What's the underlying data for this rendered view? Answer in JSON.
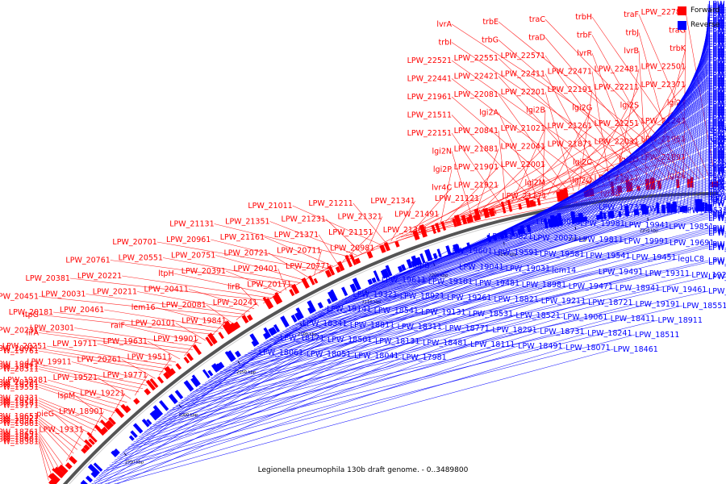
{
  "colors": {
    "forward": "#ff0000",
    "reverse": "#0000ff",
    "backbone": "#555555",
    "ticks": "#000000"
  },
  "legend": {
    "forward": "Forward",
    "reverse": "Reverse"
  },
  "caption": "Legionella pneumophila 130b draft genome. - 0..3489800",
  "scale_marks": [
    {
      "kbp": 1950,
      "label": "1950 kbp"
    },
    {
      "kbp": 2000,
      "label": "2000 kbp"
    },
    {
      "kbp": 2050,
      "label": "2050 kbp"
    },
    {
      "kbp": 2100,
      "label": "2100 kbp"
    },
    {
      "kbp": 2150,
      "label": "2150 kbp"
    },
    {
      "kbp": 2200,
      "label": "2200 kbp"
    },
    {
      "kbp": 2250,
      "label": "2250 kbp"
    },
    {
      "kbp": 2300,
      "label": "2300 kbp"
    },
    {
      "kbp": 2350,
      "label": "2350 kbp"
    }
  ],
  "red_labels": [
    "LPW_22781",
    "traF",
    "trbH",
    "traC",
    "trbE",
    "lvrA",
    "traG",
    "trbJ",
    "trbF",
    "traD",
    "trbG",
    "trbI",
    "trbK",
    "lvrB",
    "lvrR",
    "LPW_22571",
    "LPW_22551",
    "LPW_22521",
    "LPW_22501",
    "LPW_22481",
    "LPW_22471",
    "LPW_22411",
    "LPW_22421",
    "LPW_22441",
    "LPW_22371",
    "LPW_22211",
    "LPW_22191",
    "LPW_22201",
    "LPW_22081",
    "LPW_21961",
    "lgi2T",
    "lgi2S",
    "lgi2G",
    "lgi2B",
    "lgi2A",
    "LPW_21511",
    "LPW_21241",
    "LPW_21251",
    "LPW_21261",
    "LPW_21021",
    "LPW_20841",
    "LPW_22151",
    "LPW_21951",
    "LPW_22031",
    "LPW_21871",
    "LPW_22041",
    "LPW_21881",
    "lgi2N",
    "LPW_21891",
    "lgi2O",
    "lgi2C",
    "LPW_22001",
    "LPW_21901",
    "lgi2P",
    "lgi2L",
    "LPW_21911",
    "lgi2Q",
    "lgi2M",
    "LPW_21921",
    "lvr4C",
    "lvr4B",
    "LPW_21171",
    "LPW_21121",
    "LPW_21341",
    "LPW_21211",
    "LPW_21011",
    "lvr4A",
    "LPW_21491",
    "LPW_21321",
    "LPW_21231",
    "LPW_21351",
    "LPW_21131",
    "LPW_21361",
    "LPW_21151",
    "LPW_21371",
    "LPW_21161",
    "LPW_20961",
    "LPW_20701",
    "LPW_20981",
    "LPW_20711",
    "LPW_20721",
    "LPW_20751",
    "LPW_20551",
    "LPW_20761",
    "LPW_20771",
    "LPW_20401",
    "LPW_20391",
    "ltpH",
    "LPW_20221",
    "LPW_20381",
    "LPW_20171",
    "lirB",
    "LPW_20411",
    "LPW_20211",
    "LPW_20031",
    "LPW_20451",
    "LPW_20241",
    "LPW_20081",
    "lem16",
    "LPW_20461",
    "LPW_20181",
    "ltpG",
    "LPW_19841",
    "LPW_20101",
    "raiF",
    "LPW_20301",
    "LPW_20231",
    "lirA",
    "LPW_19901",
    "LPW_19631",
    "LPW_19711",
    "LPW_20251",
    "LPW_20021",
    "LPW_19761",
    "LPW_19511",
    "LPW_20261",
    "LPW_19911",
    "LPW_19641",
    "LPW_19411",
    "LPW_20311",
    "LPW_19771",
    "LPW_19521",
    "LPW_19281",
    "LPW_20321",
    "LPW_19781",
    "LPW_19551",
    "LPW_19221",
    "lspM",
    "LPW_20331",
    "LPW_19791",
    "LPW_19561",
    "LPW_19171",
    "LPW_18901",
    "pieG",
    "LPW_19651",
    "LPW_19021",
    "LPW_20361",
    "LPW_19661",
    "LPW_19331",
    "LPW_18761",
    "LPW_18631",
    "LPW_18471",
    "LPW_18601",
    "LPW_18381"
  ],
  "blue_labels": [
    "LPW_22341",
    "LPW_22051",
    "LPW_22311",
    "LPW_22021",
    "LPW_22011",
    "LPW_21941",
    "LPW_21931",
    "LPW_22541",
    "LPW_22431",
    "LPW_22381",
    "LPW_22301",
    "LPW_22181",
    "LPW_22351",
    "LPW_22291",
    "LPW_22071",
    "LPW_22361",
    "LPW_22061",
    "LPW_21541",
    "LPW_21411",
    "LPW_21561",
    "LPW_21331",
    "LPW_21481",
    "LPW_21571",
    "LPW_21471",
    "LPW_21611",
    "LPW_21081",
    "LPW_20921",
    "LPW_20791",
    "LPW_20951",
    "LPW_20741",
    "LPW_20881",
    "LPW_20561",
    "LPW_20931",
    "LPW_20731",
    "LPW_20501",
    "LPW_20861",
    "LPW_20671",
    "LPW_21091",
    "LPW_20911",
    "LPW_20681",
    "LPW_21221",
    "LPW_20941",
    "LPW_20691",
    "LPW_21601",
    "LPW_21111",
    "LPW_20661",
    "LPW_21461",
    "LPW_21071",
    "LPW_20651",
    "LPW_21451",
    "LPW_21061",
    "LPW_20641",
    "LPW_21441",
    "LPW_21041",
    "LPW_20631",
    "LPW_21421",
    "LPW_20971",
    "LPW_20621",
    "LPW_21621",
    "LPW_21201",
    "LPW_20901",
    "LPW_20581",
    "LPW_21551",
    "LPW_21191",
    "LPW_20891",
    "LPW_20571",
    "LPW_21531",
    "LPW_21181",
    "LPW_20851",
    "LPW_20531",
    "lgi2R",
    "LPW_21431",
    "LPW_21141",
    "LPW_20831",
    "LPW_20511",
    "lvr4R",
    "LPW_21401",
    "LPW_21101",
    "LPW_20821",
    "LPW_20491",
    "LPW_21051",
    "LPW_20801",
    "LPW_20481",
    "LPW_21031",
    "LPW_20781",
    "LPW_20471",
    "LPW_21271",
    "LPW_20871",
    "LPW_20441",
    "secD",
    "LPW_20811",
    "LPW_20541",
    "LPW_20281",
    "LPW_20521",
    "LPW_20271",
    "secF",
    "LPW_20431",
    "LPW_20191",
    "yajC",
    "LPW_20421",
    "pieE",
    "LPW_20161",
    "setA",
    "LPW_20121",
    "lirE",
    "LPW_19871",
    "legC4",
    "lem17",
    "lirF",
    "pieF",
    "LPW_19861",
    "LPW_19831",
    "LPW_19731",
    "LPW_19571",
    "LPW_19531",
    "lem15",
    "LPW_19501",
    "LPW_19431",
    "LPW_20051",
    "LPW_20011",
    "LPW_20001",
    "LPW_19981",
    "LPW_19941",
    "LPW_19851",
    "LPW_19751",
    "LPW_20061",
    "LPW_19931",
    "LPW_19891",
    "LPW_19821",
    "LPW_20071",
    "LPW_19811",
    "LPW_19991",
    "LPW_19691",
    "LPW_19921",
    "LPW_19621",
    "LPW_19881",
    "LPW_19601",
    "LPW_19591",
    "LPW_19581",
    "LPW_19541",
    "LPW_19451",
    "legLC8",
    "LPW_19181",
    "LPW_19111",
    "lepB",
    "LPW_19041",
    "LPW_19031",
    "lem14",
    "LPW_19491",
    "LPW_19311",
    "LPW_19271",
    "LPW_19741",
    "LPW_19611",
    "LPW_19101",
    "LPW_19481",
    "LPW_18981",
    "LPW_19471",
    "LPW_18941",
    "LPW_19461",
    "LPW_18931",
    "LPW_19321",
    "LPW_18921",
    "LPW_19261",
    "LPW_18821",
    "LPW_19211",
    "LPW_18721",
    "LPW_19191",
    "LPW_18551",
    "LPW_19141",
    "LPW_18541",
    "LPW_19131",
    "LPW_18531",
    "LPW_18521",
    "LPW_19061",
    "LPW_18411",
    "LPW_18911",
    "LPW_18341",
    "LPW_18811",
    "LPW_18311",
    "LPW_18771",
    "LPW_18291",
    "LPW_18731",
    "LPW_18241",
    "LPW_18511",
    "LPW_18171",
    "LPW_18501",
    "LPW_18131",
    "LPW_18481",
    "LPW_18111",
    "LPW_18491",
    "LPW_18071",
    "LPW_18461",
    "LPW_18061",
    "LPW_18051",
    "LPW_18041",
    "LPW_17981"
  ]
}
